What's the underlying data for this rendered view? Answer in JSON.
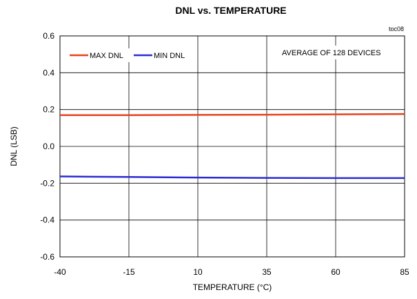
{
  "chart_data": {
    "type": "line",
    "title": "DNL vs. TEMPERATURE",
    "figure_id": "toc08",
    "annotation": "AVERAGE OF 128 DEVICES",
    "xlabel": "TEMPERATURE (°C)",
    "ylabel": "DNL  (LSB)",
    "xlim": [
      -40,
      85
    ],
    "ylim": [
      -0.6,
      0.6
    ],
    "x_ticks": [
      "-40",
      "-15",
      "10",
      "35",
      "60",
      "85"
    ],
    "y_ticks": [
      "0.6",
      "0.4",
      "0.2",
      "0.0",
      "-0.2",
      "-0.4",
      "-0.6"
    ],
    "grid": true,
    "legend_position": "top-left",
    "series": [
      {
        "name": "MAX DNL",
        "color": "#e8401c",
        "x": [
          -40,
          -15,
          10,
          35,
          60,
          85
        ],
        "y": [
          0.17,
          0.17,
          0.171,
          0.172,
          0.174,
          0.176
        ]
      },
      {
        "name": "MIN DNL",
        "color": "#2b2bd6",
        "x": [
          -40,
          -15,
          10,
          35,
          60,
          85
        ],
        "y": [
          -0.163,
          -0.166,
          -0.169,
          -0.171,
          -0.172,
          -0.172
        ]
      }
    ]
  }
}
